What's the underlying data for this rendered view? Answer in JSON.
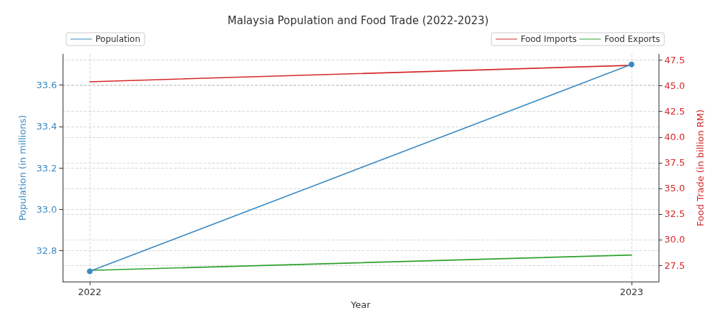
{
  "chart_data": {
    "type": "line",
    "title": "Malaysia Population and Food Trade (2022-2023)",
    "xlabel": "Year",
    "ylabel": "Population (in millions)",
    "y2label": "Food Trade (in billion RM)",
    "x": [
      2022,
      2023
    ],
    "xlim": [
      2021.95,
      2023.05
    ],
    "xticks": [
      2022,
      2023
    ],
    "ylim": [
      32.65,
      33.75
    ],
    "yticks": [
      32.8,
      {
        "value": 33,
        "label": "33.0"
      },
      33.2,
      33.4,
      33.6
    ],
    "y2lim": [
      25.9,
      48.1
    ],
    "y2ticks": [
      27.5,
      {
        "value": 30,
        "label": "30.0"
      },
      32.5,
      {
        "value": 35,
        "label": "35.0"
      },
      37.5,
      {
        "value": 40,
        "label": "40.0"
      },
      42.5,
      {
        "value": 45,
        "label": "45.0"
      },
      47.5
    ],
    "series": [
      {
        "name": "Population",
        "color": "#3a8ac2",
        "values": [
          32.7,
          33.7
        ],
        "marker": "circle"
      },
      {
        "name": "Food Imports",
        "color": "#d62728",
        "values": [
          45.4,
          47.0
        ],
        "axis": "y2",
        "marker": "none"
      },
      {
        "name": "Food Exports",
        "color": "#2ca02c",
        "values": [
          27.0,
          28.5
        ],
        "axis": "y2",
        "marker": "none"
      }
    ],
    "grid": true,
    "legend": "top",
    "line_style": "solid"
  }
}
